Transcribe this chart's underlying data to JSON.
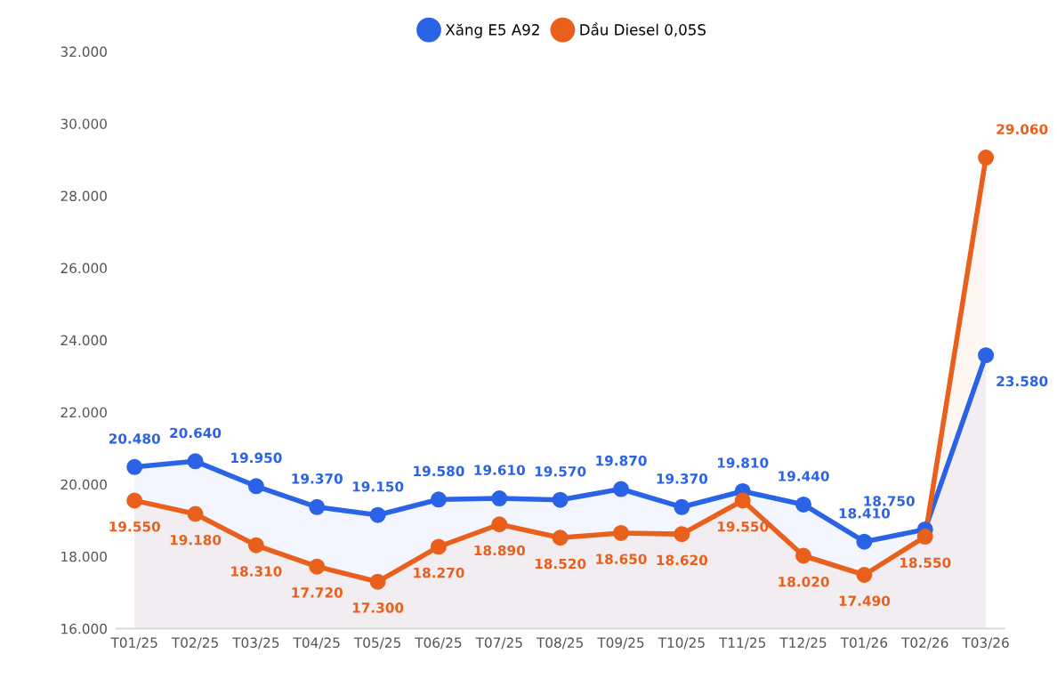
{
  "chart_data": {
    "type": "area",
    "categories": [
      "T01/25",
      "T02/25",
      "T03/25",
      "T04/25",
      "T05/25",
      "T06/25",
      "T07/25",
      "T08/25",
      "T09/25",
      "T10/25",
      "T11/25",
      "T12/25",
      "T01/26",
      "T02/26",
      "T03/26"
    ],
    "series": [
      {
        "name": "Xăng E5 A92",
        "color": "#2b63e6",
        "values": [
          20480,
          20640,
          19950,
          19370,
          19150,
          19580,
          19610,
          19570,
          19870,
          19370,
          19810,
          19440,
          18410,
          18750,
          23580
        ],
        "value_labels": [
          "20.480",
          "20.640",
          "19.950",
          "19.370",
          "19.150",
          "19.580",
          "19.610",
          "19.570",
          "19.870",
          "19.370",
          "19.810",
          "19.440",
          "18.410",
          "18.750",
          "23.580"
        ]
      },
      {
        "name": "Dầu Diesel 0,05S",
        "color": "#e8601c",
        "values": [
          19550,
          19180,
          18310,
          17720,
          17300,
          18270,
          18890,
          18520,
          18650,
          18620,
          19550,
          18020,
          17490,
          18550,
          29060
        ],
        "value_labels": [
          "19.550",
          "19.180",
          "18.310",
          "17.720",
          "17.300",
          "18.270",
          "18.890",
          "18.520",
          "18.650",
          "18.620",
          "19.550",
          "18.020",
          "17.490",
          "18.550",
          "29.060"
        ]
      }
    ],
    "ylim": [
      16000,
      32000
    ],
    "yticks": [
      {
        "value": 16000,
        "label": "16.000"
      },
      {
        "value": 18000,
        "label": "18.000"
      },
      {
        "value": 20000,
        "label": "20.000"
      },
      {
        "value": 22000,
        "label": "22.000"
      },
      {
        "value": 24000,
        "label": "24.000"
      },
      {
        "value": 26000,
        "label": "26.000"
      },
      {
        "value": 28000,
        "label": "28.000"
      },
      {
        "value": 30000,
        "label": "30.000"
      },
      {
        "value": 32000,
        "label": "32.000"
      }
    ],
    "legend": "top",
    "marker": "circle",
    "line_style": "solid",
    "grid": false
  }
}
